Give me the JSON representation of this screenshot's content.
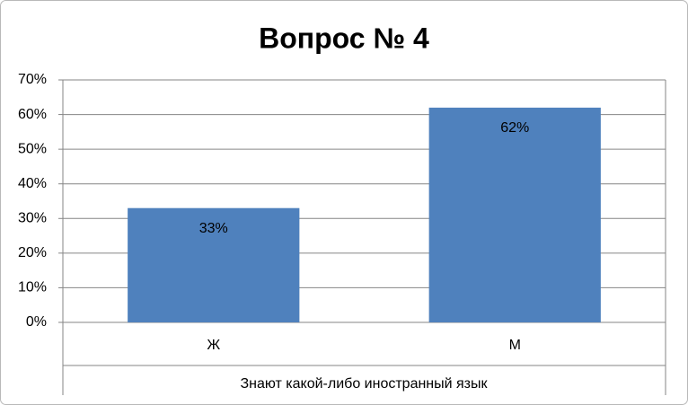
{
  "chart_data": {
    "type": "bar",
    "title": "Вопрос № 4",
    "categories": [
      "Ж",
      "М"
    ],
    "values": [
      33,
      62
    ],
    "value_labels": [
      "33%",
      "62%"
    ],
    "color": "#4f81bd",
    "x_label": "Знают какой-либо иностранный язык",
    "ylim": [
      0,
      70
    ],
    "yticks": [
      {
        "value": 0,
        "label": "0%"
      },
      {
        "value": 10,
        "label": "10%"
      },
      {
        "value": 20,
        "label": "20%"
      },
      {
        "value": 30,
        "label": "30%"
      },
      {
        "value": 40,
        "label": "40%"
      },
      {
        "value": 50,
        "label": "50%"
      },
      {
        "value": 60,
        "label": "60%"
      },
      {
        "value": 70,
        "label": "70%"
      }
    ],
    "grid": true
  }
}
